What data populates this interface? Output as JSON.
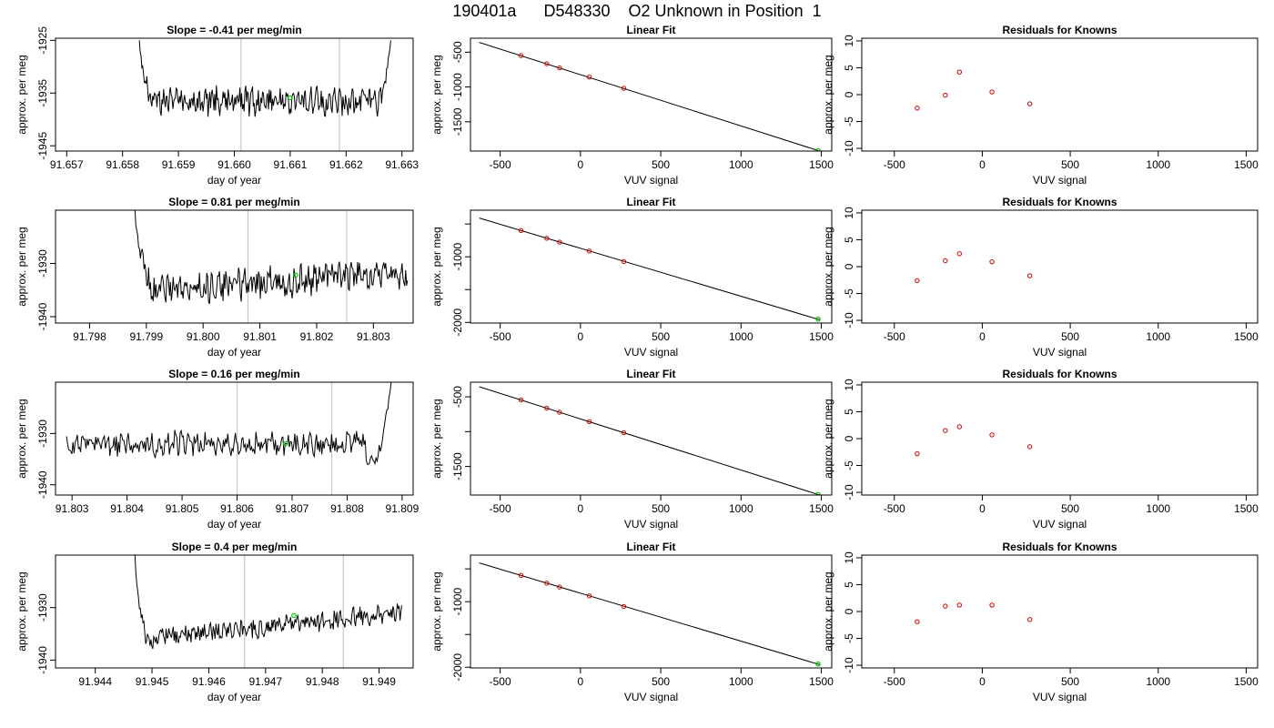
{
  "title": "190401a      D548330    O2 Unknown in Position  1",
  "colors": {
    "trace": "#000000",
    "known": "#cc0000",
    "unknown": "#00cc00",
    "marker_line": "#c8c8c8",
    "fit": "#000000"
  },
  "chart_data": [
    {
      "type": "line",
      "title": "Slope =  -0.41  per meg/min",
      "xlabel": "day of year",
      "ylabel": "approx. per meg",
      "xlim": [
        91.6568,
        91.6632
      ],
      "ylim": [
        -1946,
        -1924.6
      ],
      "xticks": [
        "91.657",
        "91.658",
        "91.659",
        "91.660",
        "91.661",
        "91.662",
        "91.663"
      ],
      "xtick_values": [
        91.657,
        91.658,
        91.659,
        91.66,
        91.661,
        91.662,
        91.663
      ],
      "yticks": [
        "-1945",
        "-1935",
        "-1925"
      ],
      "ytick_values": [
        -1945,
        -1935,
        -1925
      ],
      "vlines": [
        91.66012,
        91.66188
      ],
      "unknown_point": {
        "x": 91.661,
        "y": -1935.9
      },
      "series": [
        {
          "start": 91.6583,
          "end": 91.6628,
          "baseline": -1936.5,
          "amplitude": 2.2,
          "onset_x": 91.6583,
          "onset_y": -1925,
          "onset_end": 91.6585,
          "rise_start": 91.6626,
          "rise_y": -1925,
          "seed": 3
        }
      ]
    },
    {
      "type": "scatter",
      "title": "Linear Fit",
      "xlabel": "VUV signal",
      "ylabel": "approx. per meg",
      "xlim": [
        -685,
        1565
      ],
      "ylim": [
        -1920,
        -300
      ],
      "xticks": [
        "-500",
        "0",
        "500",
        "1000",
        "1500"
      ],
      "xtick_values": [
        -500,
        0,
        500,
        1000,
        1500
      ],
      "yticks": [
        "-1500",
        "-1000",
        "-500"
      ],
      "ytick_values": [
        -1500,
        -1000,
        -500
      ],
      "fit_line": {
        "x": [
          -630,
          1490
        ],
        "y": [
          -360,
          -1920
        ]
      },
      "knowns": {
        "x": [
          -370,
          -210,
          -130,
          55,
          270
        ],
        "y": [
          -550,
          -666,
          -726,
          -858,
          -1019
        ]
      },
      "unknown": {
        "x": 1480,
        "y": -1912
      }
    },
    {
      "type": "scatter",
      "title": "Residuals for Knowns",
      "xlabel": "VUV signal",
      "ylabel": "approx. per meg",
      "xlim": [
        -685,
        1565
      ],
      "ylim": [
        -10.5,
        10.5
      ],
      "xticks": [
        "-500",
        "0",
        "500",
        "1000",
        "1500"
      ],
      "xtick_values": [
        -500,
        0,
        500,
        1000,
        1500
      ],
      "yticks": [
        "-10",
        "-5",
        "0",
        "5",
        "10"
      ],
      "ytick_values": [
        -10,
        -5,
        0,
        5,
        10
      ],
      "points": {
        "x": [
          -370,
          -210,
          -130,
          55,
          270
        ],
        "y": [
          -2.5,
          -0.1,
          4.2,
          0.5,
          -1.7
        ]
      }
    },
    {
      "type": "line",
      "title": "Slope =  0.81  per meg/min",
      "xlabel": "day of year",
      "ylabel": "approx. per meg",
      "xlim": [
        91.7974,
        91.8037
      ],
      "ylim": [
        -1941.2,
        -1920
      ],
      "xticks": [
        "91.798",
        "91.799",
        "91.800",
        "91.801",
        "91.802",
        "91.803"
      ],
      "xtick_values": [
        91.798,
        91.799,
        91.8,
        91.801,
        91.802,
        91.803
      ],
      "yticks": [
        "-1940",
        "-1930"
      ],
      "ytick_values": [
        -1940,
        -1930
      ],
      "vlines": [
        91.80079,
        91.80253
      ],
      "unknown_point": {
        "x": 91.80163,
        "y": -1932.2
      },
      "series": [
        {
          "start": 91.7988,
          "end": 91.8036,
          "baseline": -1935,
          "trend_end": -1931.8,
          "amplitude": 2.4,
          "onset_x": 91.7988,
          "onset_y": -1920,
          "onset_end": 91.7991,
          "seed": 7
        }
      ]
    },
    {
      "type": "scatter",
      "title": "Linear Fit",
      "xlabel": "VUV signal",
      "ylabel": "approx. per meg",
      "xlim": [
        -685,
        1565
      ],
      "ylim": [
        -2010,
        -290
      ],
      "xticks": [
        "-500",
        "0",
        "500",
        "1000",
        "1500"
      ],
      "xtick_values": [
        -500,
        0,
        500,
        1000,
        1500
      ],
      "yticks": [
        "-2000",
        "-1000"
      ],
      "ytick_values": [
        -2000,
        -1000
      ],
      "minor_yticks": [
        -1500,
        -500
      ],
      "fit_line": {
        "x": [
          -630,
          1490
        ],
        "y": [
          -410,
          -1960
        ]
      },
      "knowns": {
        "x": [
          -370,
          -210,
          -130,
          55,
          270
        ],
        "y": [
          -600,
          -718,
          -777,
          -912,
          -1073
        ]
      },
      "unknown": {
        "x": 1480,
        "y": -1950
      }
    },
    {
      "type": "scatter",
      "title": "Residuals for Knowns",
      "xlabel": "VUV signal",
      "ylabel": "approx. per meg",
      "xlim": [
        -685,
        1565
      ],
      "ylim": [
        -10.5,
        10.5
      ],
      "xticks": [
        "-500",
        "0",
        "500",
        "1000",
        "1500"
      ],
      "xtick_values": [
        -500,
        0,
        500,
        1000,
        1500
      ],
      "yticks": [
        "-10",
        "-5",
        "0",
        "5",
        "10"
      ],
      "ytick_values": [
        -10,
        -5,
        0,
        5,
        10
      ],
      "points": {
        "x": [
          -370,
          -210,
          -130,
          55,
          270
        ],
        "y": [
          -2.6,
          1.1,
          2.4,
          0.9,
          -1.7
        ]
      }
    },
    {
      "type": "line",
      "title": "Slope =  0.16  per meg/min",
      "xlabel": "day of year",
      "ylabel": "approx. per meg",
      "xlim": [
        91.8027,
        91.8092
      ],
      "ylim": [
        -1942,
        -1920
      ],
      "xticks": [
        "91.803",
        "91.804",
        "91.805",
        "91.806",
        "91.807",
        "91.808",
        "91.809"
      ],
      "xtick_values": [
        91.803,
        91.804,
        91.805,
        91.806,
        91.807,
        91.808,
        91.809
      ],
      "yticks": [
        "-1940",
        "-1930"
      ],
      "ytick_values": [
        -1940,
        -1930
      ],
      "vlines": [
        91.806,
        91.80772
      ],
      "unknown_point": {
        "x": 91.80688,
        "y": -1932
      },
      "series": [
        {
          "start": 91.8029,
          "end": 91.8088,
          "baseline": -1932,
          "amplitude": 2.0,
          "rise_start": 91.80858,
          "rise_y": -1920,
          "dip_y": -1938,
          "seed": 11
        }
      ]
    },
    {
      "type": "scatter",
      "title": "Linear Fit",
      "xlabel": "VUV signal",
      "ylabel": "approx. per meg",
      "xlim": [
        -685,
        1565
      ],
      "ylim": [
        -1910,
        -290
      ],
      "xticks": [
        "-500",
        "0",
        "500",
        "1000",
        "1500"
      ],
      "xtick_values": [
        -500,
        0,
        500,
        1000,
        1500
      ],
      "yticks": [
        "-1500",
        "-500"
      ],
      "ytick_values": [
        -1500,
        -500
      ],
      "minor_yticks": [
        -1000
      ],
      "fit_line": {
        "x": [
          -630,
          1490
        ],
        "y": [
          -355,
          -1910
        ]
      },
      "knowns": {
        "x": [
          -370,
          -210,
          -130,
          55,
          270
        ],
        "y": [
          -545,
          -662,
          -721,
          -856,
          -1014
        ]
      },
      "unknown": {
        "x": 1480,
        "y": -1902
      }
    },
    {
      "type": "scatter",
      "title": "Residuals for Knowns",
      "xlabel": "VUV signal",
      "ylabel": "approx. per meg",
      "xlim": [
        -685,
        1565
      ],
      "ylim": [
        -10.5,
        10.5
      ],
      "xticks": [
        "-500",
        "0",
        "500",
        "1000",
        "1500"
      ],
      "xtick_values": [
        -500,
        0,
        500,
        1000,
        1500
      ],
      "yticks": [
        "-10",
        "-5",
        "0",
        "5",
        "10"
      ],
      "ytick_values": [
        -10,
        -5,
        0,
        5,
        10
      ],
      "points": {
        "x": [
          -370,
          -210,
          -130,
          55,
          270
        ],
        "y": [
          -2.8,
          1.5,
          2.2,
          0.7,
          -1.5
        ]
      }
    },
    {
      "type": "line",
      "title": "Slope =  0.4  per meg/min",
      "xlabel": "day of year",
      "ylabel": "approx. per meg",
      "xlim": [
        91.9433,
        91.9496
      ],
      "ylim": [
        -1941.5,
        -1920
      ],
      "xticks": [
        "91.944",
        "91.945",
        "91.946",
        "91.947",
        "91.948",
        "91.949"
      ],
      "xtick_values": [
        91.944,
        91.945,
        91.946,
        91.947,
        91.948,
        91.949
      ],
      "yticks": [
        "-1940",
        "-1930"
      ],
      "ytick_values": [
        -1940,
        -1930
      ],
      "vlines": [
        91.94663,
        91.94837
      ],
      "unknown_point": {
        "x": 91.9475,
        "y": -1931.5
      },
      "series": [
        {
          "start": 91.9447,
          "end": 91.9494,
          "baseline": -1936,
          "trend_end": -1931,
          "amplitude": 1.6,
          "onset_x": 91.9447,
          "onset_y": -1920,
          "onset_end": 91.9449,
          "seed": 5
        }
      ]
    },
    {
      "type": "scatter",
      "title": "Linear Fit",
      "xlabel": "VUV signal",
      "ylabel": "approx. per meg",
      "xlim": [
        -685,
        1565
      ],
      "ylim": [
        -2010,
        -290
      ],
      "xticks": [
        "-500",
        "0",
        "500",
        "1000",
        "1500"
      ],
      "xtick_values": [
        -500,
        0,
        500,
        1000,
        1500
      ],
      "yticks": [
        "-2000",
        "-1000"
      ],
      "ytick_values": [
        -2000,
        -1000
      ],
      "minor_yticks": [
        -1500,
        -500
      ],
      "fit_line": {
        "x": [
          -630,
          1490
        ],
        "y": [
          -410,
          -1960
        ]
      },
      "knowns": {
        "x": [
          -370,
          -210,
          -130,
          55,
          270
        ],
        "y": [
          -600,
          -718,
          -777,
          -912,
          -1073
        ]
      },
      "unknown": {
        "x": 1480,
        "y": -1950
      }
    },
    {
      "type": "scatter",
      "title": "Residuals for Knowns",
      "xlabel": "VUV signal",
      "ylabel": "approx. per meg",
      "xlim": [
        -685,
        1565
      ],
      "ylim": [
        -10.5,
        10.5
      ],
      "xticks": [
        "-500",
        "0",
        "500",
        "1000",
        "1500"
      ],
      "xtick_values": [
        -500,
        0,
        500,
        1000,
        1500
      ],
      "yticks": [
        "-10",
        "-5",
        "0",
        "5",
        "10"
      ],
      "ytick_values": [
        -10,
        -5,
        0,
        5,
        10
      ],
      "points": {
        "x": [
          -370,
          -210,
          -130,
          55,
          270
        ],
        "y": [
          -1.9,
          1.0,
          1.2,
          1.2,
          -1.5
        ]
      }
    }
  ]
}
